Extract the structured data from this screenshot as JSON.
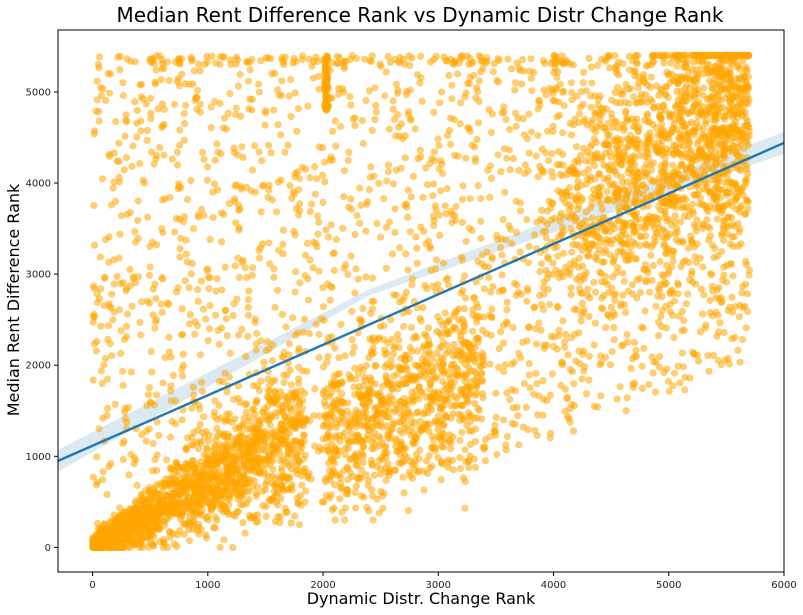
{
  "chart_data": {
    "type": "scatter",
    "title": "Median Rent Difference Rank vs Dynamic Distr Change Rank",
    "xlabel": "Dynamic Distr. Change Rank",
    "ylabel": "Median Rent Difference  Rank",
    "xlim": [
      -300,
      6000
    ],
    "ylim": [
      -270,
      5680
    ],
    "xticks": [
      0,
      1000,
      2000,
      3000,
      4000,
      5000,
      6000
    ],
    "yticks": [
      0,
      1000,
      2000,
      3000,
      4000,
      5000
    ],
    "xtick_labels": [
      "0",
      "1000",
      "2000",
      "3000",
      "4000",
      "5000",
      "6000"
    ],
    "ytick_labels": [
      "0",
      "1000",
      "2000",
      "3000",
      "4000",
      "5000"
    ],
    "grid": false,
    "point_color": "#FFA500",
    "point_opacity": 0.55,
    "approx_point_count": 5700,
    "regression_line": {
      "color": "#1f77b4",
      "x": [
        -300,
        6000
      ],
      "y": [
        950,
        4440
      ],
      "confidence_band": true
    },
    "point_regions": [
      {
        "description": "dense cluster lower-left",
        "x_range": [
          0,
          1800
        ],
        "y_center_slope": 0.72,
        "count": 1600
      },
      {
        "description": "cluster band",
        "x_range": [
          2000,
          3300
        ],
        "y_range": [
          1000,
          2600
        ],
        "count": 700
      },
      {
        "description": "upper-right dense",
        "x_range": [
          4000,
          5700
        ],
        "y_range": [
          3500,
          5400
        ],
        "count": 1300
      },
      {
        "description": "diffuse spread",
        "x_range": [
          0,
          5700
        ],
        "y_range": [
          200,
          5400
        ],
        "count": 2000
      },
      {
        "description": "vertical streak",
        "x": 2030,
        "y_range": [
          4800,
          5400
        ],
        "count": 80
      }
    ]
  }
}
